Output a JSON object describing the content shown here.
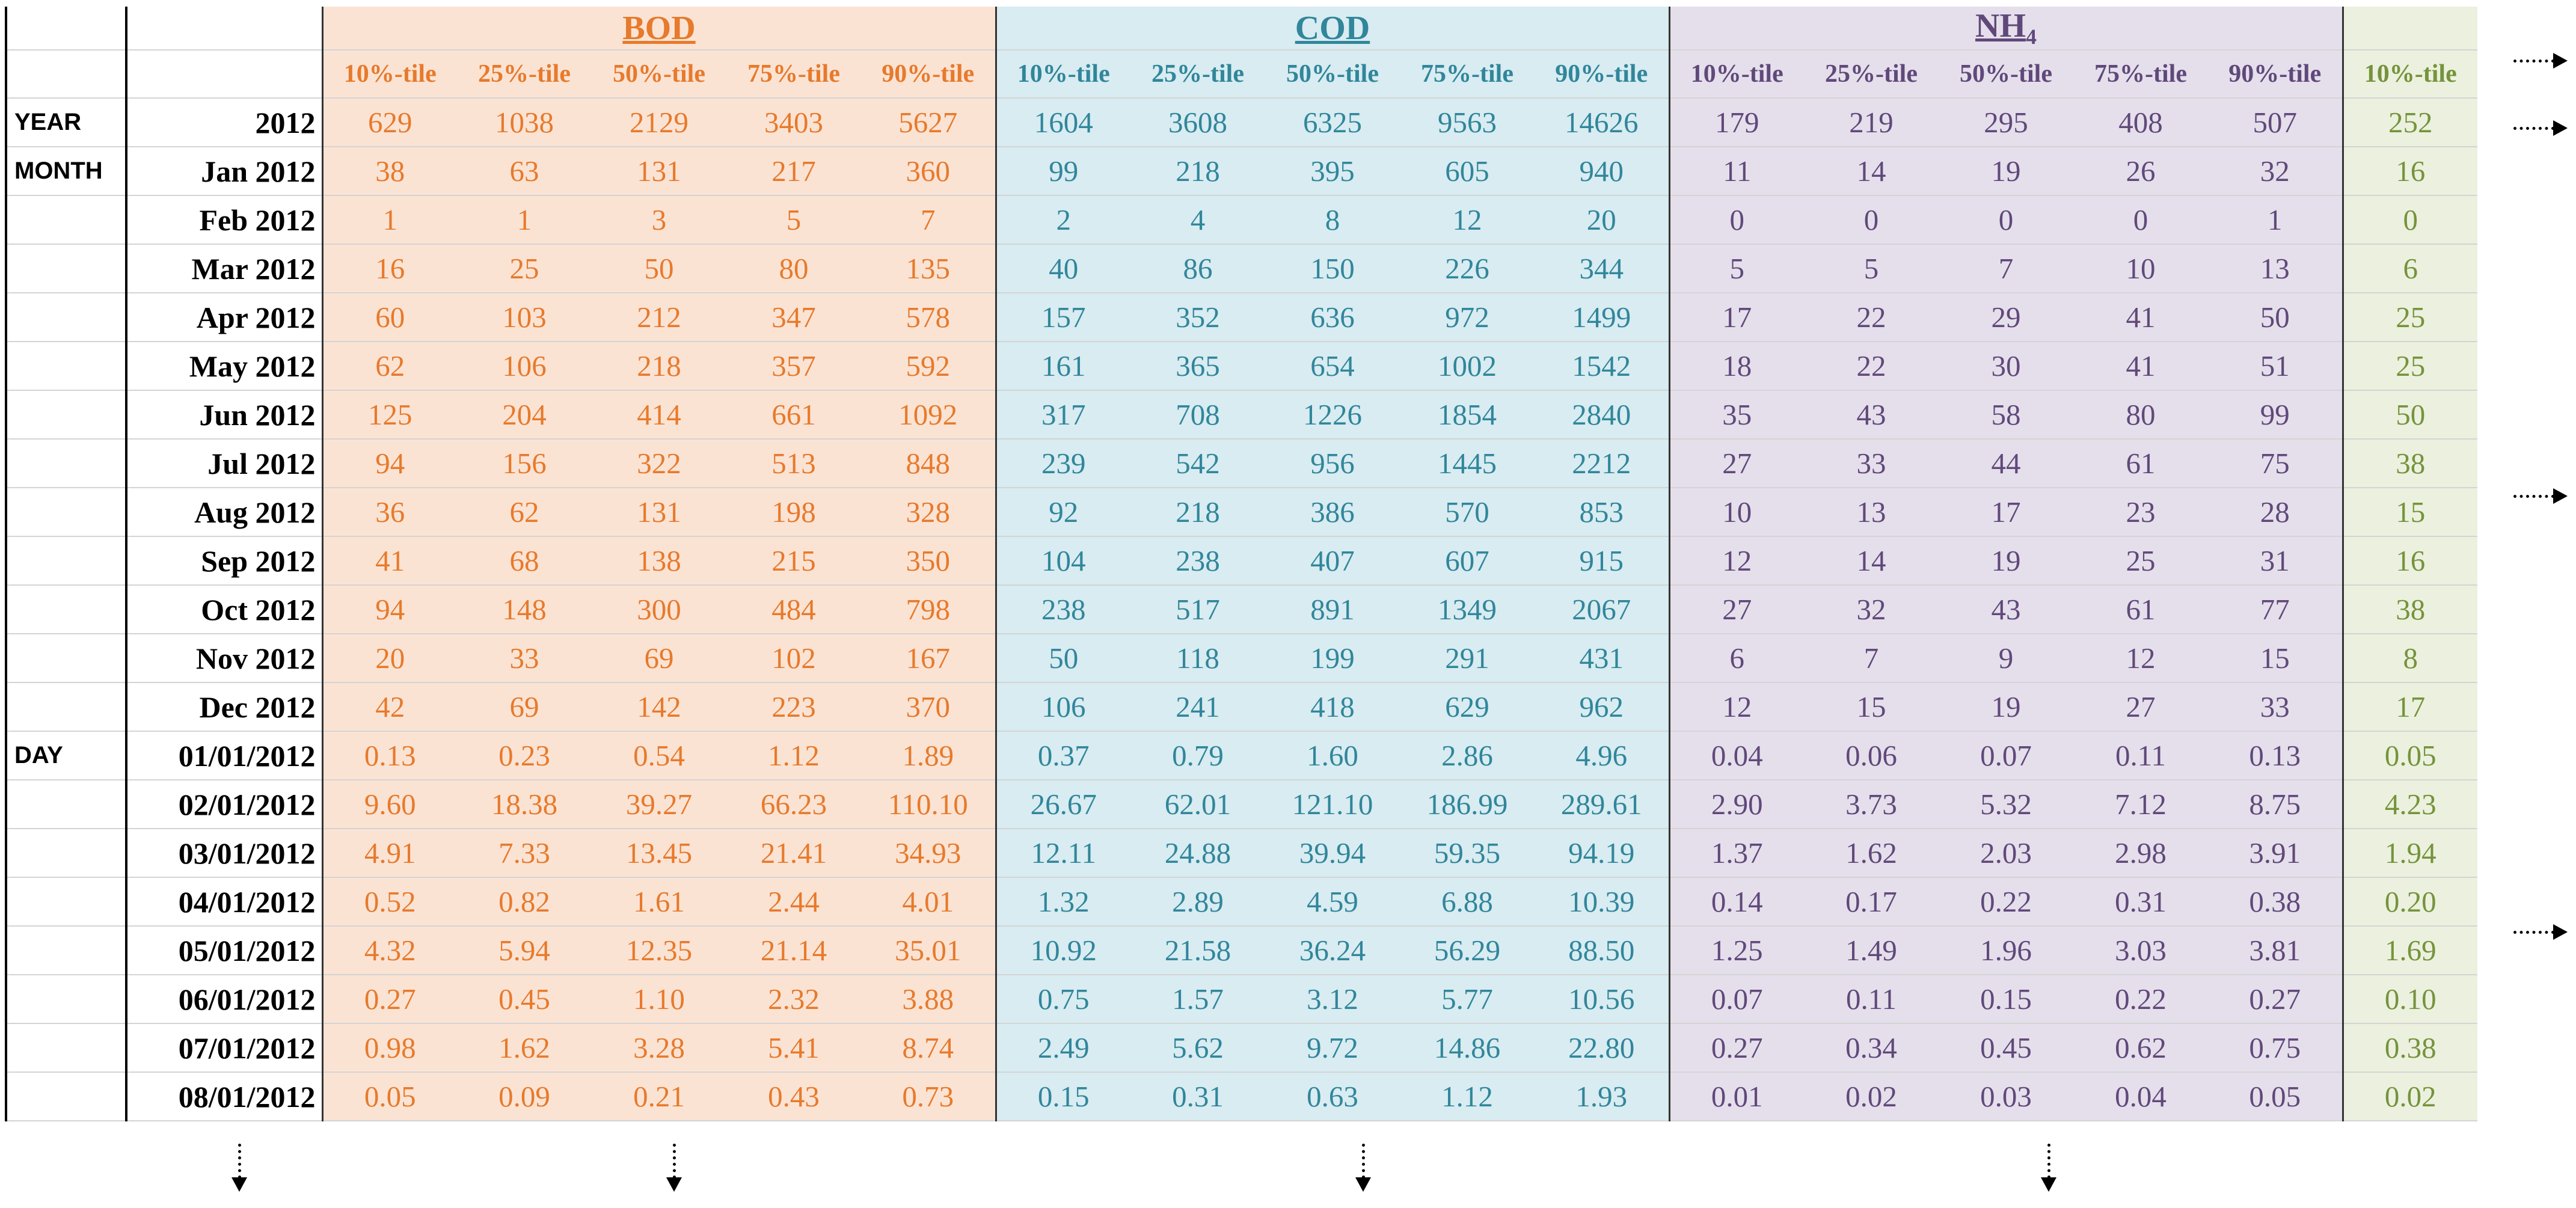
{
  "groups": [
    {
      "name": "BOD",
      "color": "#e77a2b",
      "fill": "#fbe3d4"
    },
    {
      "name": "COD",
      "color": "#31869b",
      "fill": "#d8ecf1"
    },
    {
      "name": "NH",
      "sub": "4",
      "color": "#60497a",
      "fill": "#e5dfec"
    }
  ],
  "percentiles": [
    "10%-tile",
    "25%-tile",
    "50%-tile",
    "75%-tile",
    "90%-tile"
  ],
  "extra_column_header": "10%-tile",
  "extra_color": "#76933c",
  "rows": [
    {
      "label": "YEAR",
      "period": "2012",
      "kind": "year",
      "bod": [
        "629",
        "1038",
        "2129",
        "3403",
        "5627"
      ],
      "cod": [
        "1604",
        "3608",
        "6325",
        "9563",
        "14626"
      ],
      "nh4": [
        "179",
        "219",
        "295",
        "408",
        "507"
      ],
      "extra": "252"
    },
    {
      "label": "MONTH",
      "period": "Jan 2012",
      "kind": "month",
      "bod": [
        "38",
        "63",
        "131",
        "217",
        "360"
      ],
      "cod": [
        "99",
        "218",
        "395",
        "605",
        "940"
      ],
      "nh4": [
        "11",
        "14",
        "19",
        "26",
        "32"
      ],
      "extra": "16"
    },
    {
      "label": "",
      "period": "Feb 2012",
      "kind": "month",
      "bod": [
        "1",
        "1",
        "3",
        "5",
        "7"
      ],
      "cod": [
        "2",
        "4",
        "8",
        "12",
        "20"
      ],
      "nh4": [
        "0",
        "0",
        "0",
        "0",
        "1"
      ],
      "extra": "0"
    },
    {
      "label": "",
      "period": "Mar 2012",
      "kind": "month",
      "bod": [
        "16",
        "25",
        "50",
        "80",
        "135"
      ],
      "cod": [
        "40",
        "86",
        "150",
        "226",
        "344"
      ],
      "nh4": [
        "5",
        "5",
        "7",
        "10",
        "13"
      ],
      "extra": "6"
    },
    {
      "label": "",
      "period": "Apr 2012",
      "kind": "month",
      "bod": [
        "60",
        "103",
        "212",
        "347",
        "578"
      ],
      "cod": [
        "157",
        "352",
        "636",
        "972",
        "1499"
      ],
      "nh4": [
        "17",
        "22",
        "29",
        "41",
        "50"
      ],
      "extra": "25"
    },
    {
      "label": "",
      "period": "May 2012",
      "kind": "month",
      "bod": [
        "62",
        "106",
        "218",
        "357",
        "592"
      ],
      "cod": [
        "161",
        "365",
        "654",
        "1002",
        "1542"
      ],
      "nh4": [
        "18",
        "22",
        "30",
        "41",
        "51"
      ],
      "extra": "25"
    },
    {
      "label": "",
      "period": "Jun 2012",
      "kind": "month",
      "bod": [
        "125",
        "204",
        "414",
        "661",
        "1092"
      ],
      "cod": [
        "317",
        "708",
        "1226",
        "1854",
        "2840"
      ],
      "nh4": [
        "35",
        "43",
        "58",
        "80",
        "99"
      ],
      "extra": "50"
    },
    {
      "label": "",
      "period": "Jul 2012",
      "kind": "month",
      "bod": [
        "94",
        "156",
        "322",
        "513",
        "848"
      ],
      "cod": [
        "239",
        "542",
        "956",
        "1445",
        "2212"
      ],
      "nh4": [
        "27",
        "33",
        "44",
        "61",
        "75"
      ],
      "extra": "38"
    },
    {
      "label": "",
      "period": "Aug 2012",
      "kind": "month",
      "bod": [
        "36",
        "62",
        "131",
        "198",
        "328"
      ],
      "cod": [
        "92",
        "218",
        "386",
        "570",
        "853"
      ],
      "nh4": [
        "10",
        "13",
        "17",
        "23",
        "28"
      ],
      "extra": "15"
    },
    {
      "label": "",
      "period": "Sep 2012",
      "kind": "month",
      "bod": [
        "41",
        "68",
        "138",
        "215",
        "350"
      ],
      "cod": [
        "104",
        "238",
        "407",
        "607",
        "915"
      ],
      "nh4": [
        "12",
        "14",
        "19",
        "25",
        "31"
      ],
      "extra": "16"
    },
    {
      "label": "",
      "period": "Oct 2012",
      "kind": "month",
      "bod": [
        "94",
        "148",
        "300",
        "484",
        "798"
      ],
      "cod": [
        "238",
        "517",
        "891",
        "1349",
        "2067"
      ],
      "nh4": [
        "27",
        "32",
        "43",
        "61",
        "77"
      ],
      "extra": "38"
    },
    {
      "label": "",
      "period": "Nov 2012",
      "kind": "month",
      "bod": [
        "20",
        "33",
        "69",
        "102",
        "167"
      ],
      "cod": [
        "50",
        "118",
        "199",
        "291",
        "431"
      ],
      "nh4": [
        "6",
        "7",
        "9",
        "12",
        "15"
      ],
      "extra": "8"
    },
    {
      "label": "",
      "period": "Dec 2012",
      "kind": "month-last",
      "bod": [
        "42",
        "69",
        "142",
        "223",
        "370"
      ],
      "cod": [
        "106",
        "241",
        "418",
        "629",
        "962"
      ],
      "nh4": [
        "12",
        "15",
        "19",
        "27",
        "33"
      ],
      "extra": "17"
    },
    {
      "label": "DAY",
      "period": "01/01/2012",
      "kind": "day",
      "bod": [
        "0.13",
        "0.23",
        "0.54",
        "1.12",
        "1.89"
      ],
      "cod": [
        "0.37",
        "0.79",
        "1.60",
        "2.86",
        "4.96"
      ],
      "nh4": [
        "0.04",
        "0.06",
        "0.07",
        "0.11",
        "0.13"
      ],
      "extra": "0.05"
    },
    {
      "label": "",
      "period": "02/01/2012",
      "kind": "day",
      "bod": [
        "9.60",
        "18.38",
        "39.27",
        "66.23",
        "110.10"
      ],
      "cod": [
        "26.67",
        "62.01",
        "121.10",
        "186.99",
        "289.61"
      ],
      "nh4": [
        "2.90",
        "3.73",
        "5.32",
        "7.12",
        "8.75"
      ],
      "extra": "4.23"
    },
    {
      "label": "",
      "period": "03/01/2012",
      "kind": "day",
      "bod": [
        "4.91",
        "7.33",
        "13.45",
        "21.41",
        "34.93"
      ],
      "cod": [
        "12.11",
        "24.88",
        "39.94",
        "59.35",
        "94.19"
      ],
      "nh4": [
        "1.37",
        "1.62",
        "2.03",
        "2.98",
        "3.91"
      ],
      "extra": "1.94"
    },
    {
      "label": "",
      "period": "04/01/2012",
      "kind": "day",
      "bod": [
        "0.52",
        "0.82",
        "1.61",
        "2.44",
        "4.01"
      ],
      "cod": [
        "1.32",
        "2.89",
        "4.59",
        "6.88",
        "10.39"
      ],
      "nh4": [
        "0.14",
        "0.17",
        "0.22",
        "0.31",
        "0.38"
      ],
      "extra": "0.20"
    },
    {
      "label": "",
      "period": "05/01/2012",
      "kind": "day",
      "bod": [
        "4.32",
        "5.94",
        "12.35",
        "21.14",
        "35.01"
      ],
      "cod": [
        "10.92",
        "21.58",
        "36.24",
        "56.29",
        "88.50"
      ],
      "nh4": [
        "1.25",
        "1.49",
        "1.96",
        "3.03",
        "3.81"
      ],
      "extra": "1.69"
    },
    {
      "label": "",
      "period": "06/01/2012",
      "kind": "day",
      "bod": [
        "0.27",
        "0.45",
        "1.10",
        "2.32",
        "3.88"
      ],
      "cod": [
        "0.75",
        "1.57",
        "3.12",
        "5.77",
        "10.56"
      ],
      "nh4": [
        "0.07",
        "0.11",
        "0.15",
        "0.22",
        "0.27"
      ],
      "extra": "0.10"
    },
    {
      "label": "",
      "period": "07/01/2012",
      "kind": "day",
      "bod": [
        "0.98",
        "1.62",
        "3.28",
        "5.41",
        "8.74"
      ],
      "cod": [
        "2.49",
        "5.62",
        "9.72",
        "14.86",
        "22.80"
      ],
      "nh4": [
        "0.27",
        "0.34",
        "0.45",
        "0.62",
        "0.75"
      ],
      "extra": "0.38"
    },
    {
      "label": "",
      "period": "08/01/2012",
      "kind": "day",
      "bod": [
        "0.05",
        "0.09",
        "0.21",
        "0.43",
        "0.73"
      ],
      "cod": [
        "0.15",
        "0.31",
        "0.63",
        "1.12",
        "1.93"
      ],
      "nh4": [
        "0.01",
        "0.02",
        "0.03",
        "0.04",
        "0.05"
      ],
      "extra": "0.02"
    }
  ],
  "icons": [
    "continue-right-arrow-icon",
    "continue-down-arrow-icon"
  ]
}
